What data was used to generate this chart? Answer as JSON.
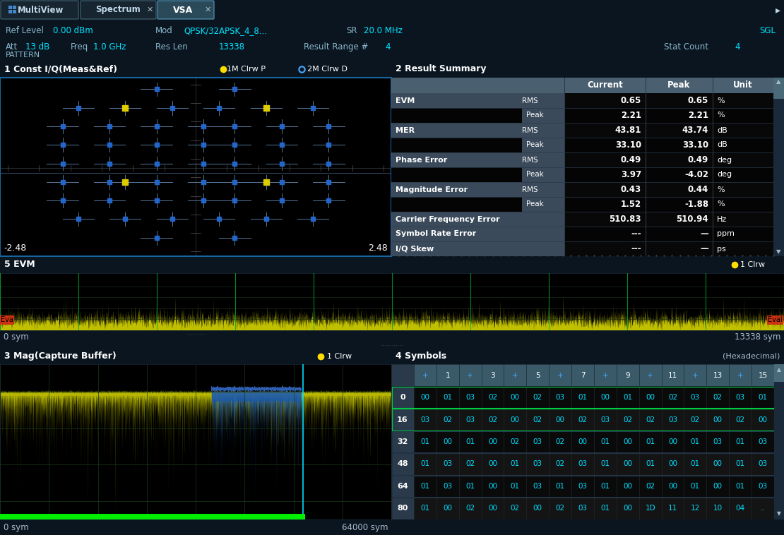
{
  "bg_color": "#0a1520",
  "toolbar_bg": "#16252f",
  "toolbar_active_tab": "#2a4a5a",
  "header_bg": "#0d1e28",
  "panel_header_bg": "#1565a0",
  "panel_header_bg2": "#1e3040",
  "table_header_bg": "#4a6070",
  "table_label_bg": "#3a4a5a",
  "text_white": "#ffffff",
  "text_cyan": "#00e5ff",
  "green_line": "#00cc44",
  "tab_labels": [
    "MultiView",
    "Spectrum",
    "VSA"
  ],
  "panel1_title": "1 Const I/Q(Meas&Ref)",
  "panel1_legend": [
    "1M Clrw P",
    "2M Clrw D"
  ],
  "panel1_xmin": "-2.48",
  "panel1_xmax": "2.48",
  "const_blue_points": [
    [
      -0.5,
      1.7
    ],
    [
      0.5,
      1.7
    ],
    [
      -1.5,
      1.3
    ],
    [
      -0.9,
      1.3
    ],
    [
      -0.3,
      1.3
    ],
    [
      0.3,
      1.3
    ],
    [
      0.9,
      1.3
    ],
    [
      1.5,
      1.3
    ],
    [
      -1.7,
      0.9
    ],
    [
      -1.1,
      0.9
    ],
    [
      -0.5,
      0.9
    ],
    [
      0.1,
      0.9
    ],
    [
      0.5,
      0.9
    ],
    [
      1.1,
      0.9
    ],
    [
      1.7,
      0.9
    ],
    [
      -1.7,
      0.5
    ],
    [
      -1.1,
      0.5
    ],
    [
      -0.5,
      0.5
    ],
    [
      0.1,
      0.5
    ],
    [
      0.5,
      0.5
    ],
    [
      1.1,
      0.5
    ],
    [
      1.7,
      0.5
    ],
    [
      -1.7,
      0.1
    ],
    [
      -1.1,
      0.1
    ],
    [
      -0.5,
      0.1
    ],
    [
      0.1,
      0.1
    ],
    [
      0.5,
      0.1
    ],
    [
      1.1,
      0.1
    ],
    [
      1.7,
      0.1
    ],
    [
      -1.7,
      -0.3
    ],
    [
      -1.1,
      -0.3
    ],
    [
      -0.5,
      -0.3
    ],
    [
      0.1,
      -0.3
    ],
    [
      0.5,
      -0.3
    ],
    [
      1.1,
      -0.3
    ],
    [
      1.7,
      -0.3
    ],
    [
      -1.7,
      -0.7
    ],
    [
      -1.1,
      -0.7
    ],
    [
      -0.5,
      -0.7
    ],
    [
      0.1,
      -0.7
    ],
    [
      0.5,
      -0.7
    ],
    [
      1.1,
      -0.7
    ],
    [
      1.7,
      -0.7
    ],
    [
      -1.5,
      -1.1
    ],
    [
      -0.9,
      -1.1
    ],
    [
      -0.3,
      -1.1
    ],
    [
      0.3,
      -1.1
    ],
    [
      0.9,
      -1.1
    ],
    [
      1.5,
      -1.1
    ],
    [
      -0.5,
      -1.5
    ],
    [
      0.5,
      -1.5
    ]
  ],
  "const_yellow_points": [
    [
      -0.9,
      1.3
    ],
    [
      0.9,
      1.3
    ],
    [
      -0.9,
      -0.3
    ],
    [
      0.9,
      -0.3
    ]
  ],
  "panel2_title": "2 Result Summary",
  "table_rows": [
    [
      "EVM",
      "RMS",
      "0.65",
      "0.65",
      "%"
    ],
    [
      "",
      "Peak",
      "2.21",
      "2.21",
      "%"
    ],
    [
      "MER",
      "RMS",
      "43.81",
      "43.74",
      "dB"
    ],
    [
      "",
      "Peak",
      "33.10",
      "33.10",
      "dB"
    ],
    [
      "Phase Error",
      "RMS",
      "0.49",
      "0.49",
      "deg"
    ],
    [
      "",
      "Peak",
      "3.97",
      "-4.02",
      "deg"
    ],
    [
      "Magnitude Error",
      "RMS",
      "0.43",
      "0.44",
      "%"
    ],
    [
      "",
      "Peak",
      "1.52",
      "-1.88",
      "%"
    ],
    [
      "Carrier Frequency Error",
      "",
      "510.83",
      "510.94",
      "Hz"
    ],
    [
      "Symbol Rate Error",
      "",
      "---",
      "—",
      "ppm"
    ],
    [
      "I/Q Skew",
      "",
      "---",
      "—",
      "ps"
    ]
  ],
  "panel5_title": "5 EVM",
  "panel5_legend": "1 Clrw",
  "evm_xmin": "0 sym",
  "evm_xmax": "13338 sym",
  "panel3_title": "3 Mag(Capture Buffer)",
  "panel3_legend": "1 Clrw",
  "panel3_xmin": "0 sym",
  "panel3_xmax": "64000 sym",
  "panel4_title": "4 Symbols",
  "panel4_subtitle": "(Hexadecimal)",
  "symbols_col_headers": [
    "+",
    "1",
    "+",
    "3",
    "+",
    "5",
    "+",
    "7",
    "+",
    "9",
    "+",
    "11",
    "+",
    "13",
    "+",
    "15"
  ],
  "symbols_rows": [
    [
      "0",
      "00",
      "01",
      "03",
      "02",
      "00",
      "02",
      "03",
      "01",
      "00",
      "01",
      "00",
      "02",
      "03",
      "02",
      "03",
      "01"
    ],
    [
      "16",
      "03",
      "02",
      "03",
      "02",
      "00",
      "02",
      "00",
      "02",
      "03",
      "02",
      "02",
      "03",
      "02",
      "00",
      "02",
      "00"
    ],
    [
      "32",
      "01",
      "00",
      "01",
      "00",
      "02",
      "03",
      "02",
      "00",
      "01",
      "00",
      "01",
      "00",
      "01",
      "03",
      "01",
      "03"
    ],
    [
      "48",
      "01",
      "03",
      "02",
      "00",
      "01",
      "03",
      "02",
      "03",
      "01",
      "00",
      "01",
      "00",
      "01",
      "00",
      "01",
      "03"
    ],
    [
      "64",
      "01",
      "03",
      "01",
      "00",
      "01",
      "03",
      "01",
      "03",
      "01",
      "00",
      "02",
      "00",
      "01",
      "00",
      "01",
      "03"
    ],
    [
      "80",
      "01",
      "00",
      "02",
      "00",
      "02",
      "00",
      "02",
      "03",
      "01",
      "00",
      "1D",
      "11",
      "12",
      "10",
      "04",
      ".."
    ]
  ]
}
